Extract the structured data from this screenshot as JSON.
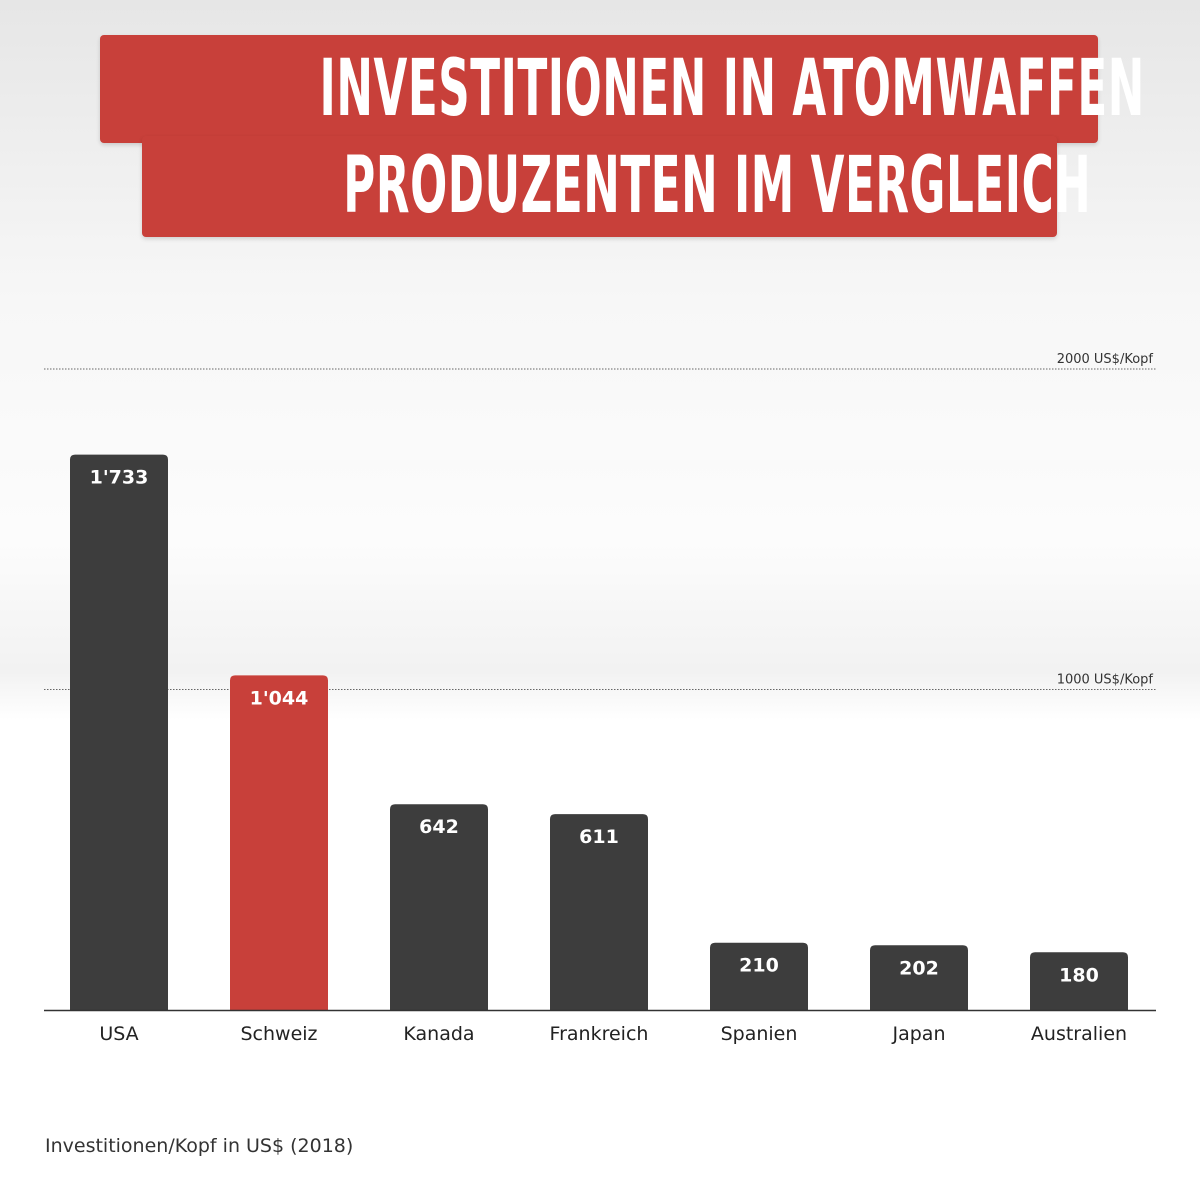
{
  "title": {
    "line1": "INVESTITIONEN IN ATOMWAFFEN",
    "line2": "PRODUZENTEN  IM VERGLEICH"
  },
  "colors": {
    "accent": "#c8403a",
    "bar": "#3d3d3d",
    "highlight_bar": "#c8403a"
  },
  "chart_data": {
    "type": "bar",
    "categories": [
      "USA",
      "Schweiz",
      "Kanada",
      "Frankreich",
      "Spanien",
      "Japan",
      "Australien"
    ],
    "values": [
      1733,
      1044,
      642,
      611,
      210,
      202,
      180
    ],
    "value_labels": [
      "1'733",
      "1'044",
      "642",
      "611",
      "210",
      "202",
      "180"
    ],
    "highlight": "Schweiz",
    "gridlines": [
      {
        "value": 2000,
        "label": "2000 US$/Kopf"
      },
      {
        "value": 1000,
        "label": "1000 US$/Kopf"
      }
    ],
    "ylim": [
      0,
      2000
    ],
    "grid": true
  },
  "footnote": "Investitionen/Kopf in US$ (2018)"
}
